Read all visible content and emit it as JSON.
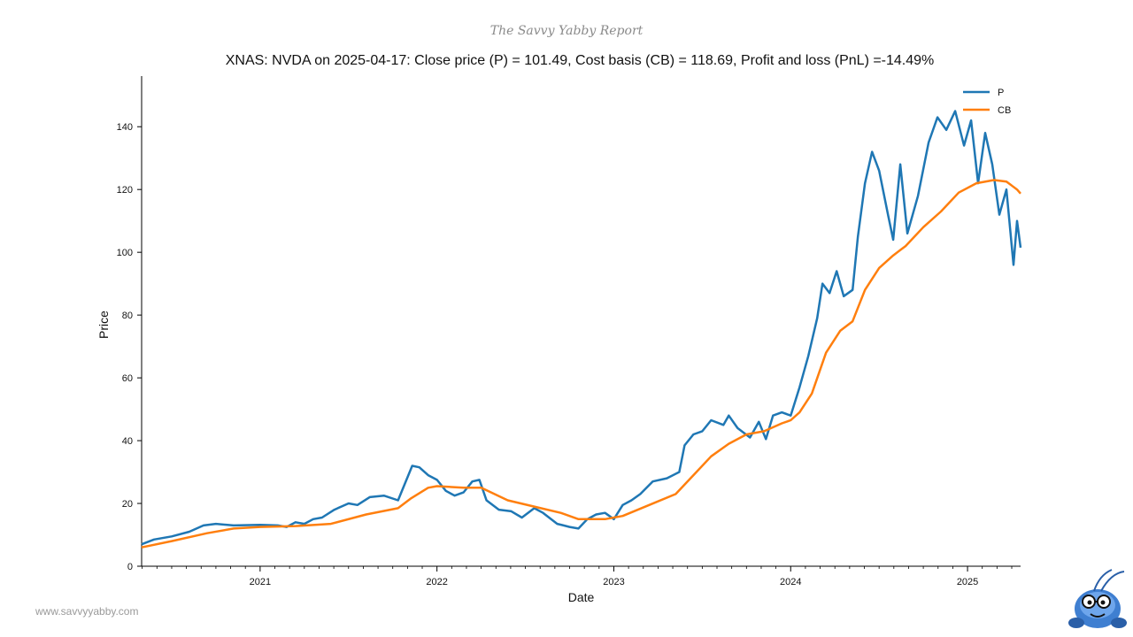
{
  "brand": "The Savvy Yabby Report",
  "footer": {
    "site": "www.savvyyabby.com"
  },
  "chart_data": {
    "type": "line",
    "title": "XNAS: NVDA on 2025-04-17: Close price (P) = 101.49, Cost basis (CB) = 118.69, Profit and loss (PnL) =-14.49%",
    "xlabel": "Date",
    "ylabel": "Price",
    "xlim": [
      2020.33,
      2025.3
    ],
    "ylim": [
      0,
      155
    ],
    "yticks": [
      0,
      20,
      40,
      60,
      80,
      100,
      120,
      140
    ],
    "xticks": [
      {
        "label": "2021",
        "value": 2021.0
      },
      {
        "label": "2022",
        "value": 2022.0
      },
      {
        "label": "2023",
        "value": 2023.0
      },
      {
        "label": "2024",
        "value": 2024.0
      },
      {
        "label": "2025",
        "value": 2025.0
      }
    ],
    "legend": {
      "position": "top-right"
    },
    "colors": {
      "P": "#1f77b4",
      "CB": "#ff7f0e"
    },
    "series": [
      {
        "name": "P",
        "points": [
          [
            2020.33,
            7.0
          ],
          [
            2020.4,
            8.5
          ],
          [
            2020.5,
            9.5
          ],
          [
            2020.6,
            11.0
          ],
          [
            2020.68,
            13.0
          ],
          [
            2020.75,
            13.5
          ],
          [
            2020.85,
            13.0
          ],
          [
            2021.0,
            13.2
          ],
          [
            2021.1,
            13.0
          ],
          [
            2021.15,
            12.5
          ],
          [
            2021.2,
            14.0
          ],
          [
            2021.25,
            13.5
          ],
          [
            2021.3,
            15.0
          ],
          [
            2021.35,
            15.5
          ],
          [
            2021.42,
            18.0
          ],
          [
            2021.5,
            20.0
          ],
          [
            2021.55,
            19.5
          ],
          [
            2021.62,
            22.0
          ],
          [
            2021.7,
            22.5
          ],
          [
            2021.78,
            21.0
          ],
          [
            2021.82,
            26.5
          ],
          [
            2021.86,
            32.0
          ],
          [
            2021.9,
            31.5
          ],
          [
            2021.95,
            29.0
          ],
          [
            2022.0,
            27.5
          ],
          [
            2022.05,
            24.0
          ],
          [
            2022.1,
            22.5
          ],
          [
            2022.15,
            23.5
          ],
          [
            2022.2,
            27.0
          ],
          [
            2022.24,
            27.5
          ],
          [
            2022.28,
            21.0
          ],
          [
            2022.35,
            18.0
          ],
          [
            2022.42,
            17.5
          ],
          [
            2022.48,
            15.5
          ],
          [
            2022.55,
            18.5
          ],
          [
            2022.6,
            17.0
          ],
          [
            2022.68,
            13.5
          ],
          [
            2022.75,
            12.5
          ],
          [
            2022.8,
            12.0
          ],
          [
            2022.85,
            15.0
          ],
          [
            2022.9,
            16.5
          ],
          [
            2022.95,
            17.0
          ],
          [
            2023.0,
            15.0
          ],
          [
            2023.05,
            19.5
          ],
          [
            2023.1,
            21.0
          ],
          [
            2023.15,
            23.0
          ],
          [
            2023.22,
            27.0
          ],
          [
            2023.3,
            28.0
          ],
          [
            2023.37,
            30.0
          ],
          [
            2023.4,
            38.5
          ],
          [
            2023.45,
            42.0
          ],
          [
            2023.5,
            43.0
          ],
          [
            2023.55,
            46.5
          ],
          [
            2023.62,
            45.0
          ],
          [
            2023.65,
            48.0
          ],
          [
            2023.7,
            44.0
          ],
          [
            2023.77,
            41.0
          ],
          [
            2023.82,
            46.0
          ],
          [
            2023.86,
            40.5
          ],
          [
            2023.9,
            48.0
          ],
          [
            2023.95,
            49.0
          ],
          [
            2024.0,
            48.0
          ],
          [
            2024.05,
            57.0
          ],
          [
            2024.1,
            67.0
          ],
          [
            2024.15,
            79.0
          ],
          [
            2024.18,
            90.0
          ],
          [
            2024.22,
            87.0
          ],
          [
            2024.26,
            94.0
          ],
          [
            2024.3,
            86.0
          ],
          [
            2024.35,
            88.0
          ],
          [
            2024.38,
            105.0
          ],
          [
            2024.42,
            122.0
          ],
          [
            2024.46,
            132.0
          ],
          [
            2024.5,
            126.0
          ],
          [
            2024.55,
            112.0
          ],
          [
            2024.58,
            104.0
          ],
          [
            2024.62,
            128.0
          ],
          [
            2024.66,
            106.0
          ],
          [
            2024.72,
            118.0
          ],
          [
            2024.78,
            135.0
          ],
          [
            2024.83,
            143.0
          ],
          [
            2024.88,
            139.0
          ],
          [
            2024.93,
            145.0
          ],
          [
            2024.98,
            134.0
          ],
          [
            2025.02,
            142.0
          ],
          [
            2025.06,
            122.0
          ],
          [
            2025.1,
            138.0
          ],
          [
            2025.14,
            128.0
          ],
          [
            2025.18,
            112.0
          ],
          [
            2025.22,
            120.0
          ],
          [
            2025.26,
            96.0
          ],
          [
            2025.28,
            110.0
          ],
          [
            2025.3,
            101.49
          ]
        ]
      },
      {
        "name": "CB",
        "points": [
          [
            2020.33,
            6.0
          ],
          [
            2020.5,
            8.0
          ],
          [
            2020.7,
            10.5
          ],
          [
            2020.85,
            12.0
          ],
          [
            2021.0,
            12.5
          ],
          [
            2021.2,
            12.8
          ],
          [
            2021.4,
            13.5
          ],
          [
            2021.6,
            16.5
          ],
          [
            2021.78,
            18.5
          ],
          [
            2021.85,
            21.5
          ],
          [
            2021.95,
            25.0
          ],
          [
            2022.0,
            25.5
          ],
          [
            2022.15,
            25.0
          ],
          [
            2022.25,
            25.0
          ],
          [
            2022.4,
            21.0
          ],
          [
            2022.55,
            19.0
          ],
          [
            2022.7,
            17.0
          ],
          [
            2022.8,
            15.0
          ],
          [
            2022.95,
            15.0
          ],
          [
            2023.05,
            16.0
          ],
          [
            2023.2,
            19.5
          ],
          [
            2023.35,
            23.0
          ],
          [
            2023.45,
            29.0
          ],
          [
            2023.55,
            35.0
          ],
          [
            2023.65,
            39.0
          ],
          [
            2023.75,
            42.0
          ],
          [
            2023.85,
            43.0
          ],
          [
            2023.95,
            45.5
          ],
          [
            2024.0,
            46.5
          ],
          [
            2024.05,
            49.0
          ],
          [
            2024.12,
            55.0
          ],
          [
            2024.2,
            68.0
          ],
          [
            2024.28,
            75.0
          ],
          [
            2024.35,
            78.0
          ],
          [
            2024.42,
            88.0
          ],
          [
            2024.5,
            95.0
          ],
          [
            2024.58,
            99.0
          ],
          [
            2024.65,
            102.0
          ],
          [
            2024.75,
            108.0
          ],
          [
            2024.85,
            113.0
          ],
          [
            2024.95,
            119.0
          ],
          [
            2025.05,
            122.0
          ],
          [
            2025.15,
            123.0
          ],
          [
            2025.22,
            122.5
          ],
          [
            2025.28,
            120.0
          ],
          [
            2025.3,
            118.69
          ]
        ]
      }
    ]
  }
}
